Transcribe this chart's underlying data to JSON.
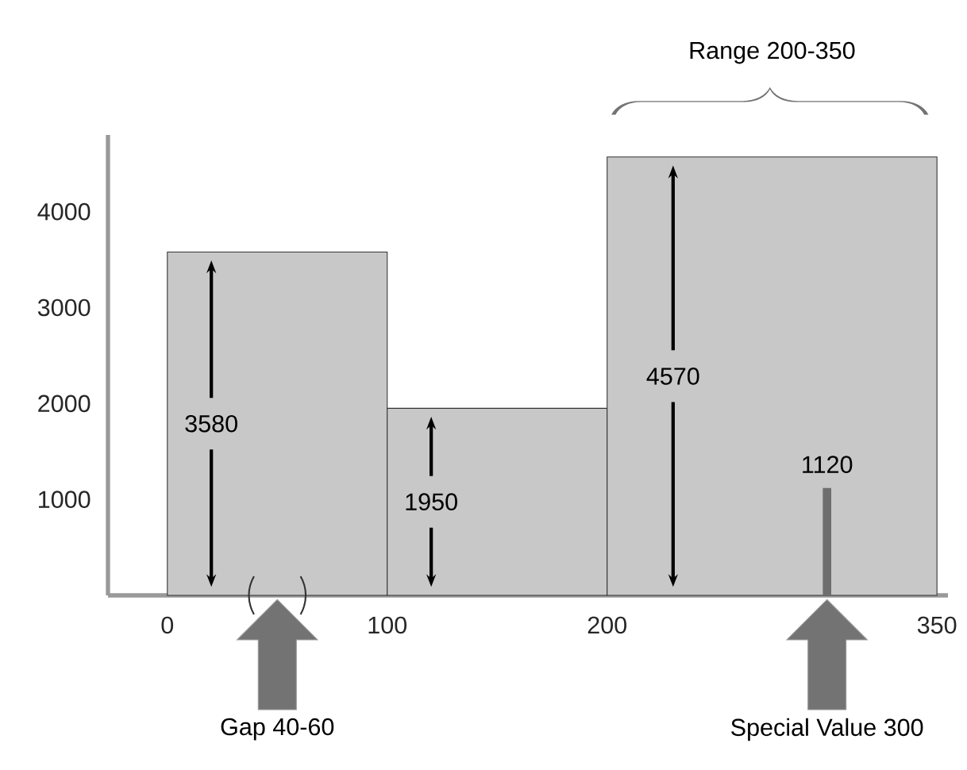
{
  "chart_data": {
    "type": "histogram",
    "series": [
      {
        "bins": [
          0,
          100,
          200,
          350
        ],
        "values": [
          3580,
          1950,
          4570
        ],
        "color": "#c8c8c8",
        "value_labels": [
          "3580",
          "1950",
          "4570"
        ]
      },
      {
        "type": "bar",
        "x": [
          300
        ],
        "values": [
          1120
        ],
        "color": "#6e6e6e",
        "value_labels": [
          "1120"
        ]
      }
    ],
    "xlim": [
      -27,
      355
    ],
    "ylim": [
      0,
      4800
    ],
    "xticks": [
      0,
      100,
      200,
      350
    ],
    "yticks": [
      1000,
      2000,
      3000,
      4000
    ],
    "annotations": [
      "Range 200-350",
      "Gap 40-60",
      "Special Value 300"
    ]
  }
}
